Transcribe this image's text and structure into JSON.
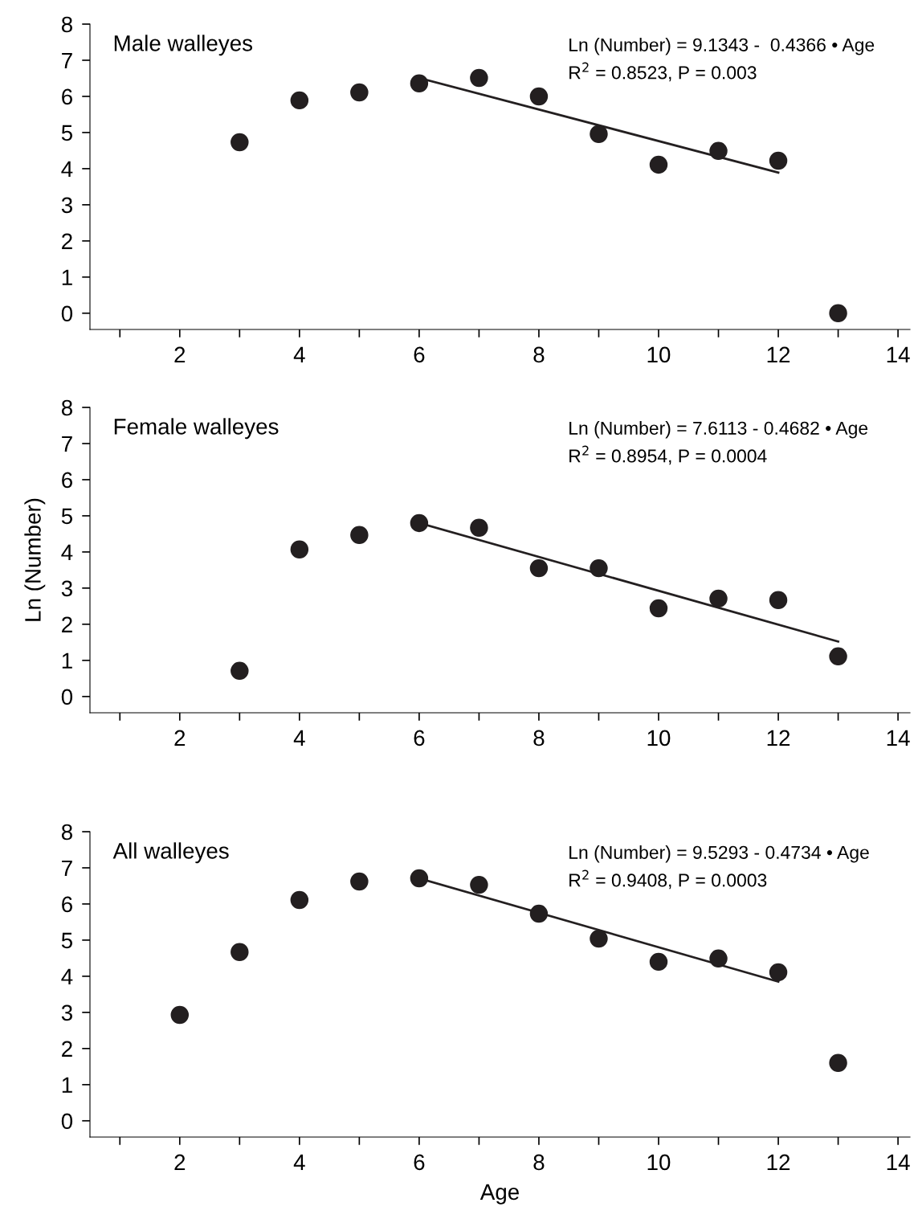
{
  "chart_data": [
    {
      "type": "scatter",
      "x": [
        3,
        4,
        5,
        6,
        7,
        8,
        9,
        10,
        11,
        12,
        13
      ],
      "xlim": [
        0.5,
        14.2
      ],
      "ylim": [
        -0.45,
        8
      ],
      "xticks": [
        {
          "value": 1,
          "label": null
        },
        2,
        {
          "value": 3,
          "label": null
        },
        4,
        {
          "value": 5,
          "label": null
        },
        6,
        {
          "value": 7,
          "label": null
        },
        8,
        {
          "value": 9,
          "label": null
        },
        10,
        {
          "value": 11,
          "label": null
        },
        12,
        {
          "value": 13,
          "label": null
        },
        14
      ],
      "yticks": [
        0,
        1,
        2,
        3,
        4,
        5,
        6,
        7,
        8
      ],
      "grid": false,
      "legend": false,
      "series": [
        {
          "marker": "circle",
          "color": "#231f20",
          "values": [
            4.73,
            5.89,
            6.11,
            6.36,
            6.51,
            6.0,
            4.96,
            4.11,
            4.49,
            4.22,
            0
          ]
        },
        {
          "type": "line",
          "color": "#231f20",
          "line_style": "solid",
          "x": [
            6,
            12
          ],
          "values": [
            6.51,
            3.89
          ]
        }
      ],
      "annotations": [
        "Male walleyes",
        "Ln (Number) = 9.1343 -  0.4366 • Age",
        "R$^{2}$ = 0.8523, P = 0.003"
      ]
    },
    {
      "type": "scatter",
      "x": [
        3,
        4,
        5,
        6,
        7,
        8,
        9,
        10,
        11,
        12,
        13
      ],
      "xlim": [
        0.5,
        14.2
      ],
      "ylim": [
        -0.45,
        8
      ],
      "xticks": [
        {
          "value": 1,
          "label": null
        },
        2,
        {
          "value": 3,
          "label": null
        },
        4,
        {
          "value": 5,
          "label": null
        },
        6,
        {
          "value": 7,
          "label": null
        },
        8,
        {
          "value": 9,
          "label": null
        },
        10,
        {
          "value": 11,
          "label": null
        },
        12,
        {
          "value": 13,
          "label": null
        },
        14
      ],
      "yticks": [
        0,
        1,
        2,
        3,
        4,
        5,
        6,
        7,
        8
      ],
      "grid": false,
      "legend": false,
      "ylabel": "Ln (Number)",
      "series": [
        {
          "marker": "circle",
          "color": "#231f20",
          "values": [
            0.71,
            4.07,
            4.47,
            4.8,
            4.67,
            3.55,
            3.55,
            2.44,
            2.71,
            2.67,
            1.11
          ]
        },
        {
          "type": "line",
          "color": "#231f20",
          "line_style": "solid",
          "x": [
            6,
            13
          ],
          "values": [
            4.8,
            1.52
          ]
        }
      ],
      "annotations": [
        "Female walleyes",
        "Ln (Number) = 7.6113 - 0.4682 • Age",
        "R$^{2}$ = 0.8954, P = 0.0004"
      ]
    },
    {
      "type": "scatter",
      "x": [
        2,
        3,
        4,
        5,
        6,
        7,
        8,
        9,
        10,
        11,
        12,
        13
      ],
      "xlim": [
        0.5,
        14.2
      ],
      "ylim": [
        -0.45,
        8
      ],
      "xticks": [
        {
          "value": 1,
          "label": null
        },
        2,
        {
          "value": 3,
          "label": null
        },
        4,
        {
          "value": 5,
          "label": null
        },
        6,
        {
          "value": 7,
          "label": null
        },
        8,
        {
          "value": 9,
          "label": null
        },
        10,
        {
          "value": 11,
          "label": null
        },
        12,
        {
          "value": 13,
          "label": null
        },
        14
      ],
      "yticks": [
        0,
        1,
        2,
        3,
        4,
        5,
        6,
        7,
        8
      ],
      "grid": false,
      "legend": false,
      "xlabel": "Age",
      "series": [
        {
          "marker": "circle",
          "color": "#231f20",
          "values": [
            2.93,
            4.67,
            6.11,
            6.62,
            6.71,
            6.53,
            5.73,
            5.04,
            4.4,
            4.49,
            4.11,
            1.6
          ]
        },
        {
          "type": "line",
          "color": "#231f20",
          "line_style": "solid",
          "x": [
            6,
            12
          ],
          "values": [
            6.71,
            3.85
          ]
        }
      ],
      "annotations": [
        "All walleyes",
        "Ln (Number) = 9.5293 - 0.4734 • Age",
        "R$^{2}$ = 0.9408, P = 0.0003"
      ]
    }
  ]
}
